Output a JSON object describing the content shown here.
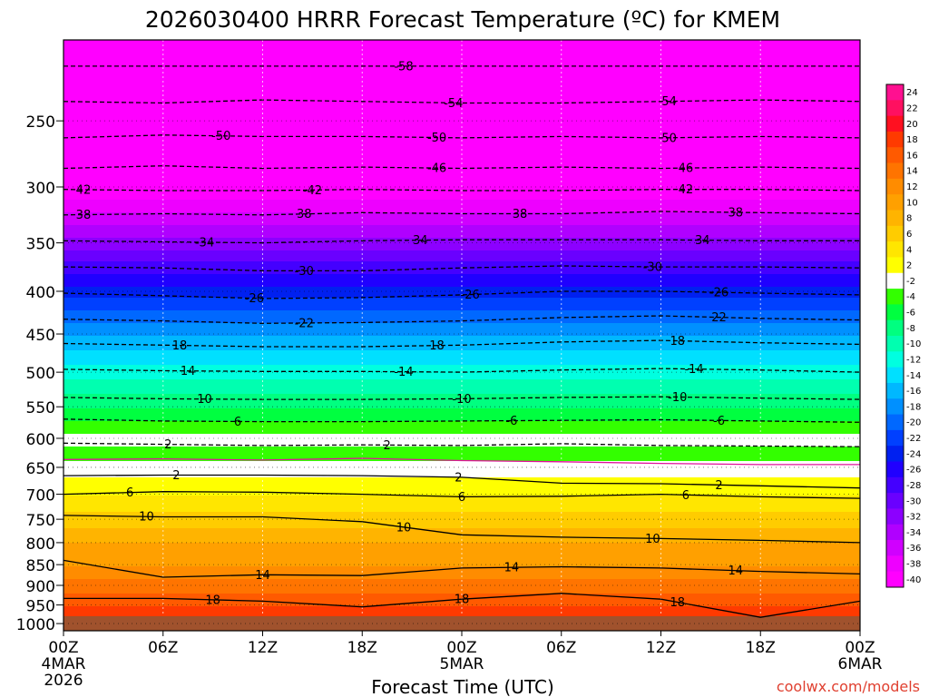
{
  "chart_data": {
    "type": "heatmap",
    "title": "2026030400 HRRR Forecast Temperature (ºC) for KMEM",
    "xlabel": "Forecast Time (UTC)",
    "ylabel": "",
    "credit": "coolwx.com/models",
    "x_ticks": [
      {
        "hour": 0,
        "line1": "00Z",
        "line2": "4MAR",
        "line3": "2026"
      },
      {
        "hour": 6,
        "line1": "06Z",
        "line2": "",
        "line3": ""
      },
      {
        "hour": 12,
        "line1": "12Z",
        "line2": "",
        "line3": ""
      },
      {
        "hour": 18,
        "line1": "18Z",
        "line2": "",
        "line3": ""
      },
      {
        "hour": 24,
        "line1": "00Z",
        "line2": "5MAR",
        "line3": ""
      },
      {
        "hour": 30,
        "line1": "06Z",
        "line2": "",
        "line3": ""
      },
      {
        "hour": 36,
        "line1": "12Z",
        "line2": "",
        "line3": ""
      },
      {
        "hour": 42,
        "line1": "18Z",
        "line2": "",
        "line3": ""
      },
      {
        "hour": 48,
        "line1": "00Z",
        "line2": "6MAR",
        "line3": ""
      }
    ],
    "xlim_hours": [
      0,
      48
    ],
    "y_ticks": [
      "250",
      "300",
      "350",
      "400",
      "450",
      "500",
      "550",
      "600",
      "650",
      "700",
      "750",
      "800",
      "850",
      "900",
      "950",
      "1000"
    ],
    "y_log_pressure": true,
    "ylim_hpa": [
      1020,
      200
    ],
    "grid": "dotted",
    "colorbar": {
      "labels": [
        "24",
        "22",
        "20",
        "18",
        "16",
        "14",
        "12",
        "10",
        "8",
        "6",
        "4",
        "2",
        "-2",
        "-4",
        "-6",
        "-8",
        "-10",
        "-12",
        "-14",
        "-16",
        "-18",
        "-20",
        "-22",
        "-24",
        "-26",
        "-28",
        "-30",
        "-32",
        "-34",
        "-36",
        "-38",
        "-40"
      ],
      "colors": [
        "#ff1090",
        "#ff1060",
        "#ff1020",
        "#ff3a00",
        "#ff5a00",
        "#ff7400",
        "#ff8c00",
        "#ffa000",
        "#ffb400",
        "#ffcc00",
        "#ffe600",
        "#ffff00",
        "#ffffff",
        "#33ff00",
        "#00ff40",
        "#00ff80",
        "#00ffb0",
        "#00ffe0",
        "#00e0ff",
        "#00b8ff",
        "#0090ff",
        "#0068ff",
        "#0040ff",
        "#0020f0",
        "#2000ff",
        "#4400ff",
        "#6a00ff",
        "#8c00ff",
        "#b000ff",
        "#d000ff",
        "#ee00ff",
        "#ff00ff"
      ]
    },
    "temperature_profile": [
      {
        "p": 1000,
        "t": 20
      },
      {
        "p": 950,
        "t": 18
      },
      {
        "p": 900,
        "t": 15
      },
      {
        "p": 850,
        "t": 12
      },
      {
        "p": 800,
        "t": 10
      },
      {
        "p": 750,
        "t": 7
      },
      {
        "p": 700,
        "t": 4
      },
      {
        "p": 650,
        "t": 1
      },
      {
        "p": 600,
        "t": -3
      },
      {
        "p": 550,
        "t": -8
      },
      {
        "p": 500,
        "t": -13
      },
      {
        "p": 450,
        "t": -18
      },
      {
        "p": 400,
        "t": -25
      },
      {
        "p": 350,
        "t": -33
      },
      {
        "p": 300,
        "t": -42
      },
      {
        "p": 250,
        "t": -51
      },
      {
        "p": 200,
        "t": -60
      }
    ],
    "contours": [
      {
        "t": -58,
        "style": "dashed",
        "p": [
          215,
          215,
          215,
          215,
          215,
          215,
          215,
          215,
          215
        ],
        "labels": [
          {
            "hour": 20.5,
            "text": "-58"
          }
        ]
      },
      {
        "t": -54,
        "style": "dashed",
        "p": [
          237,
          238,
          236,
          237,
          238,
          238,
          237,
          236,
          237
        ],
        "labels": [
          {
            "hour": 23.5,
            "text": "-54"
          },
          {
            "hour": 36.5,
            "text": "54"
          }
        ]
      },
      {
        "t": -50,
        "style": "dashed",
        "p": [
          262,
          260,
          261,
          261,
          262,
          261,
          262,
          261,
          262
        ],
        "labels": [
          {
            "hour": 9.5,
            "text": "-50"
          },
          {
            "hour": 22.5,
            "text": "-50"
          },
          {
            "hour": 36.5,
            "text": "50"
          }
        ]
      },
      {
        "t": -46,
        "style": "dashed",
        "p": [
          285,
          283,
          285,
          284,
          285,
          284,
          285,
          284,
          285
        ],
        "labels": [
          {
            "hour": 22.5,
            "text": "-46"
          },
          {
            "hour": 37.5,
            "text": "46"
          }
        ]
      },
      {
        "t": -42,
        "style": "dashed",
        "p": [
          302,
          303,
          303,
          302,
          303,
          303,
          302,
          302,
          303
        ],
        "labels": [
          {
            "hour": 1.2,
            "text": "42"
          },
          {
            "hour": 15,
            "text": "-42"
          },
          {
            "hour": 37.5,
            "text": "42"
          }
        ]
      },
      {
        "t": -38,
        "style": "dashed",
        "p": [
          324,
          323,
          324,
          322,
          323,
          323,
          321,
          322,
          323
        ],
        "labels": [
          {
            "hour": 1.2,
            "text": "38"
          },
          {
            "hour": 14.5,
            "text": "38"
          },
          {
            "hour": 27.5,
            "text": "38"
          },
          {
            "hour": 40.5,
            "text": "38"
          }
        ]
      },
      {
        "t": -34,
        "style": "dashed",
        "p": [
          348,
          349,
          350,
          348,
          347,
          347,
          347,
          348,
          348
        ],
        "labels": [
          {
            "hour": 8.5,
            "text": "-34"
          },
          {
            "hour": 21.5,
            "text": "34"
          },
          {
            "hour": 38.5,
            "text": "34"
          }
        ]
      },
      {
        "t": -30,
        "style": "dashed",
        "p": [
          374,
          375,
          378,
          378,
          375,
          373,
          374,
          374,
          375
        ],
        "labels": [
          {
            "hour": 14.5,
            "text": "-30"
          },
          {
            "hour": 35.5,
            "text": "-30"
          }
        ]
      },
      {
        "t": -26,
        "style": "dashed",
        "p": [
          402,
          405,
          408,
          407,
          404,
          400,
          400,
          402,
          404
        ],
        "labels": [
          {
            "hour": 11.5,
            "text": "-26"
          },
          {
            "hour": 24.5,
            "text": "-26"
          },
          {
            "hour": 39.5,
            "text": "-26"
          }
        ]
      },
      {
        "t": -22,
        "style": "dashed",
        "p": [
          432,
          434,
          437,
          436,
          434,
          430,
          428,
          431,
          433
        ],
        "labels": [
          {
            "hour": 14.5,
            "text": "-22"
          },
          {
            "hour": 39.5,
            "text": "22"
          }
        ]
      },
      {
        "t": -18,
        "style": "dashed",
        "p": [
          462,
          464,
          466,
          466,
          464,
          460,
          458,
          461,
          463
        ],
        "labels": [
          {
            "hour": 7,
            "text": "18"
          },
          {
            "hour": 22.5,
            "text": "18"
          },
          {
            "hour": 37,
            "text": "18"
          }
        ]
      },
      {
        "t": -14,
        "style": "dashed",
        "p": [
          496,
          498,
          499,
          499,
          500,
          497,
          495,
          497,
          500
        ],
        "labels": [
          {
            "hour": 7.5,
            "text": "14"
          },
          {
            "hour": 20.5,
            "text": "-14"
          },
          {
            "hour": 38,
            "text": "-14"
          }
        ]
      },
      {
        "t": -10,
        "style": "dashed",
        "p": [
          536,
          538,
          539,
          539,
          538,
          536,
          535,
          537,
          539
        ],
        "labels": [
          {
            "hour": 8.5,
            "text": "10"
          },
          {
            "hour": 24,
            "text": "-10"
          },
          {
            "hour": 37,
            "text": "-10"
          }
        ]
      },
      {
        "t": -6,
        "style": "dashed",
        "p": [
          569,
          572,
          573,
          573,
          572,
          571,
          570,
          572,
          574
        ],
        "labels": [
          {
            "hour": 10.5,
            "text": "6"
          },
          {
            "hour": 27,
            "text": "-6"
          },
          {
            "hour": 39.5,
            "text": "-6"
          }
        ]
      },
      {
        "t": -2,
        "style": "dashed",
        "p": [
          608,
          610,
          612,
          611,
          612,
          609,
          612,
          613,
          614
        ],
        "labels": [
          {
            "hour": 6.3,
            "text": "2"
          },
          {
            "hour": 19.5,
            "text": "2"
          }
        ]
      },
      {
        "t": 0,
        "style": "solid-magenta",
        "p": [
          636,
          635,
          637,
          634,
          638,
          640,
          643,
          645,
          645
        ],
        "labels": []
      },
      {
        "t": 2,
        "style": "solid",
        "p": [
          665,
          664,
          664,
          665,
          668,
          679,
          680,
          684,
          688
        ],
        "labels": [
          {
            "hour": 6.8,
            "text": "2"
          },
          {
            "hour": 23.8,
            "text": "2"
          },
          {
            "hour": 39.5,
            "text": "2"
          }
        ]
      },
      {
        "t": 6,
        "style": "solid",
        "p": [
          700,
          695,
          696,
          700,
          705,
          704,
          700,
          705,
          708
        ],
        "labels": [
          {
            "hour": 4,
            "text": "6"
          },
          {
            "hour": 24,
            "text": "6"
          },
          {
            "hour": 37.5,
            "text": "6"
          }
        ]
      },
      {
        "t": 10,
        "style": "solid",
        "p": [
          742,
          745,
          745,
          755,
          783,
          788,
          791,
          795,
          800
        ],
        "labels": [
          {
            "hour": 5,
            "text": "10"
          },
          {
            "hour": 20.5,
            "text": "10"
          },
          {
            "hour": 35.5,
            "text": "10"
          }
        ]
      },
      {
        "t": 14,
        "style": "solid",
        "p": [
          840,
          880,
          874,
          876,
          858,
          855,
          858,
          866,
          872
        ],
        "labels": [
          {
            "hour": 12,
            "text": "14"
          },
          {
            "hour": 27,
            "text": "14"
          },
          {
            "hour": 40.5,
            "text": "14"
          }
        ]
      },
      {
        "t": 18,
        "style": "solid",
        "p": [
          933,
          933,
          940,
          955,
          935,
          920,
          935,
          983,
          940
        ],
        "labels": [
          {
            "hour": 9,
            "text": "18"
          },
          {
            "hour": 24,
            "text": "18"
          },
          {
            "hour": 37,
            "text": "18"
          }
        ]
      }
    ]
  }
}
